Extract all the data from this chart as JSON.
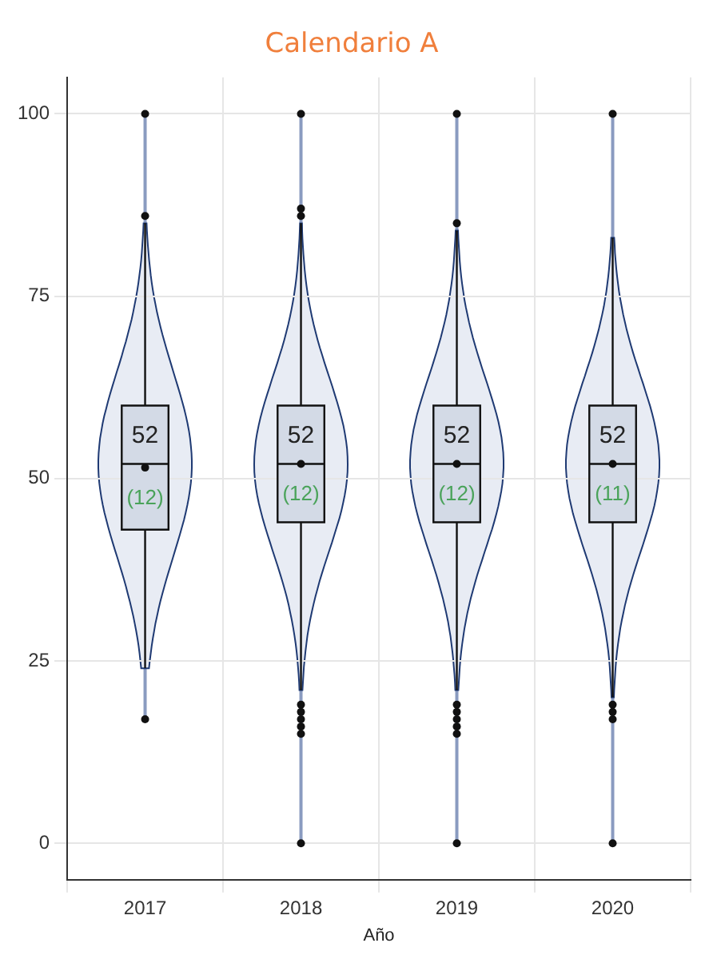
{
  "chart_data": {
    "type": "box",
    "title": "Calendario A",
    "xlabel": "Año",
    "categories": [
      "2017",
      "2018",
      "2019",
      "2020"
    ],
    "color": "#d3dae6",
    "boxes": [
      {
        "low": 24,
        "q1": 43,
        "median": 52,
        "q3": 60,
        "high": 85,
        "mean": 51.5,
        "outliers": [
          86,
          100,
          17
        ]
      },
      {
        "low": 21,
        "q1": 44,
        "median": 52,
        "q3": 60,
        "high": 85,
        "mean": 52,
        "outliers": [
          86,
          87,
          100,
          19,
          18,
          17,
          16,
          15,
          0
        ]
      },
      {
        "low": 21,
        "q1": 44,
        "median": 52,
        "q3": 60,
        "high": 84,
        "mean": 52,
        "outliers": [
          85,
          100,
          19,
          18,
          17,
          16,
          15,
          0
        ]
      },
      {
        "low": 20,
        "q1": 44,
        "median": 52,
        "q3": 60,
        "high": 83,
        "mean": 52,
        "outliers": [
          100,
          19,
          18,
          17,
          0
        ]
      }
    ],
    "value_labels": [
      "52",
      "52",
      "52",
      "52"
    ],
    "annotations": [
      "(12)",
      "(12)",
      "(12)",
      "(11)"
    ],
    "ylim": [
      -5,
      105
    ],
    "yticks": [
      0,
      25,
      50,
      75,
      100
    ],
    "grid": true,
    "legend": false
  }
}
